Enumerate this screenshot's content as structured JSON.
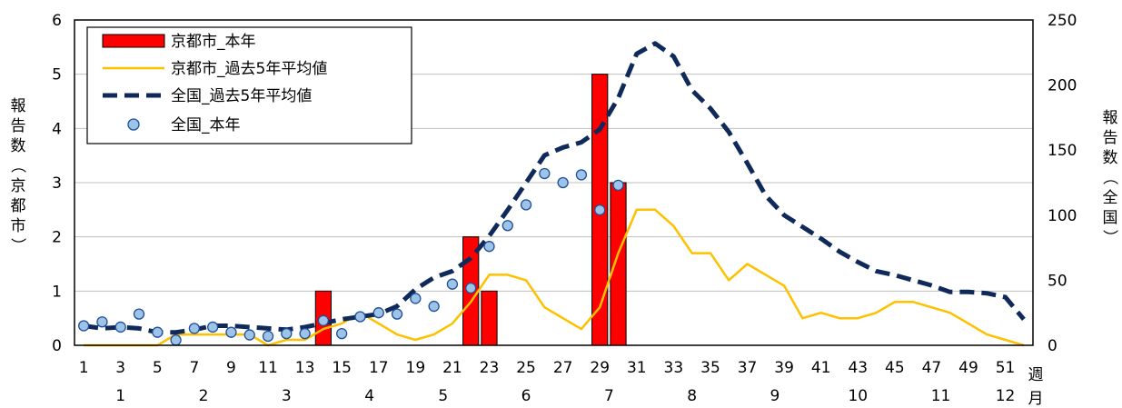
{
  "chart_data": {
    "type": "bar+line",
    "x_weeks": [
      1,
      2,
      3,
      4,
      5,
      6,
      7,
      8,
      9,
      10,
      11,
      12,
      13,
      14,
      15,
      16,
      17,
      18,
      19,
      20,
      21,
      22,
      23,
      24,
      25,
      26,
      27,
      28,
      29,
      30,
      31,
      32,
      33,
      34,
      35,
      36,
      37,
      38,
      39,
      40,
      41,
      42,
      43,
      44,
      45,
      46,
      47,
      48,
      49,
      50,
      51,
      52
    ],
    "x_tick_labels": [
      "1",
      "3",
      "5",
      "7",
      "9",
      "11",
      "13",
      "15",
      "17",
      "19",
      "21",
      "23",
      "25",
      "27",
      "29",
      "31",
      "33",
      "35",
      "37",
      "39",
      "41",
      "43",
      "45",
      "47",
      "49",
      "51"
    ],
    "month_labels": [
      {
        "label": "1",
        "week": 3
      },
      {
        "label": "2",
        "week": 7.5
      },
      {
        "label": "3",
        "week": 12
      },
      {
        "label": "4",
        "week": 16.5
      },
      {
        "label": "5",
        "week": 20.5
      },
      {
        "label": "6",
        "week": 25
      },
      {
        "label": "7",
        "week": 29.5
      },
      {
        "label": "8",
        "week": 34
      },
      {
        "label": "9",
        "week": 38.5
      },
      {
        "label": "10",
        "week": 43
      },
      {
        "label": "11",
        "week": 47.5
      },
      {
        "label": "12",
        "week": 51
      }
    ],
    "x_axis_label_week": "週",
    "x_axis_label_month": "月",
    "y_left": {
      "label": "報告数（京都市）",
      "min": 0,
      "max": 6,
      "ticks": [
        0,
        1,
        2,
        3,
        4,
        5,
        6
      ]
    },
    "y_right": {
      "label": "報告数（全国）",
      "min": 0,
      "max": 250,
      "ticks": [
        0,
        50,
        100,
        150,
        200,
        250
      ]
    },
    "series": [
      {
        "name": "京都市_本年",
        "kind": "bar",
        "axis": "left",
        "color": "#ff0000",
        "values": [
          0,
          0,
          0,
          0,
          0,
          0,
          0,
          0,
          0,
          0,
          0,
          0,
          0,
          1,
          0,
          0,
          0,
          0,
          0,
          0,
          0,
          2,
          1,
          0,
          0,
          0,
          0,
          0,
          5,
          3,
          0,
          0,
          0,
          0,
          0,
          0,
          0,
          0,
          0,
          0,
          0,
          0,
          0,
          0,
          0,
          0,
          0,
          0,
          0,
          0,
          0,
          0
        ]
      },
      {
        "name": "京都市_過去5年平均値",
        "kind": "line",
        "axis": "left",
        "color": "#ffc000",
        "values": [
          0,
          0,
          0,
          0,
          0,
          0.2,
          0.2,
          0.2,
          0.2,
          0.2,
          0,
          0.1,
          0.1,
          0.3,
          0.4,
          0.6,
          0.4,
          0.2,
          0.1,
          0.2,
          0.4,
          0.8,
          1.3,
          1.3,
          1.2,
          0.7,
          0.5,
          0.3,
          0.7,
          1.7,
          2.5,
          2.5,
          2.2,
          1.7,
          1.7,
          1.2,
          1.5,
          1.3,
          1.1,
          0.5,
          0.6,
          0.5,
          0.5,
          0.6,
          0.8,
          0.8,
          0.7,
          0.6,
          0.4,
          0.2,
          0.1,
          0
        ]
      },
      {
        "name": "全国_過去5年平均値",
        "kind": "line-dashed",
        "axis": "right",
        "color": "#0f2a5a",
        "values": [
          15,
          13,
          14,
          13,
          10,
          10,
          12,
          15,
          15,
          14,
          13,
          12,
          14,
          17,
          20,
          22,
          24,
          30,
          43,
          52,
          57,
          67,
          84,
          104,
          125,
          146,
          152,
          156,
          166,
          190,
          224,
          232,
          222,
          196,
          182,
          164,
          140,
          115,
          100,
          91,
          82,
          72,
          64,
          57,
          54,
          50,
          46,
          41,
          41,
          40,
          37,
          20
        ]
      },
      {
        "name": "全国_本年",
        "kind": "scatter",
        "axis": "right",
        "color": "#9dc3e6",
        "values": [
          15,
          18,
          14,
          24,
          10,
          4,
          13,
          14,
          10,
          8,
          7,
          9,
          9,
          19,
          9,
          22,
          25,
          24,
          36,
          30,
          47,
          44,
          76,
          92,
          108,
          132,
          125,
          131,
          104,
          123
        ]
      }
    ],
    "legend": {
      "placement": "top-left"
    },
    "grid": {
      "horizontal": true,
      "vertical": false
    }
  }
}
